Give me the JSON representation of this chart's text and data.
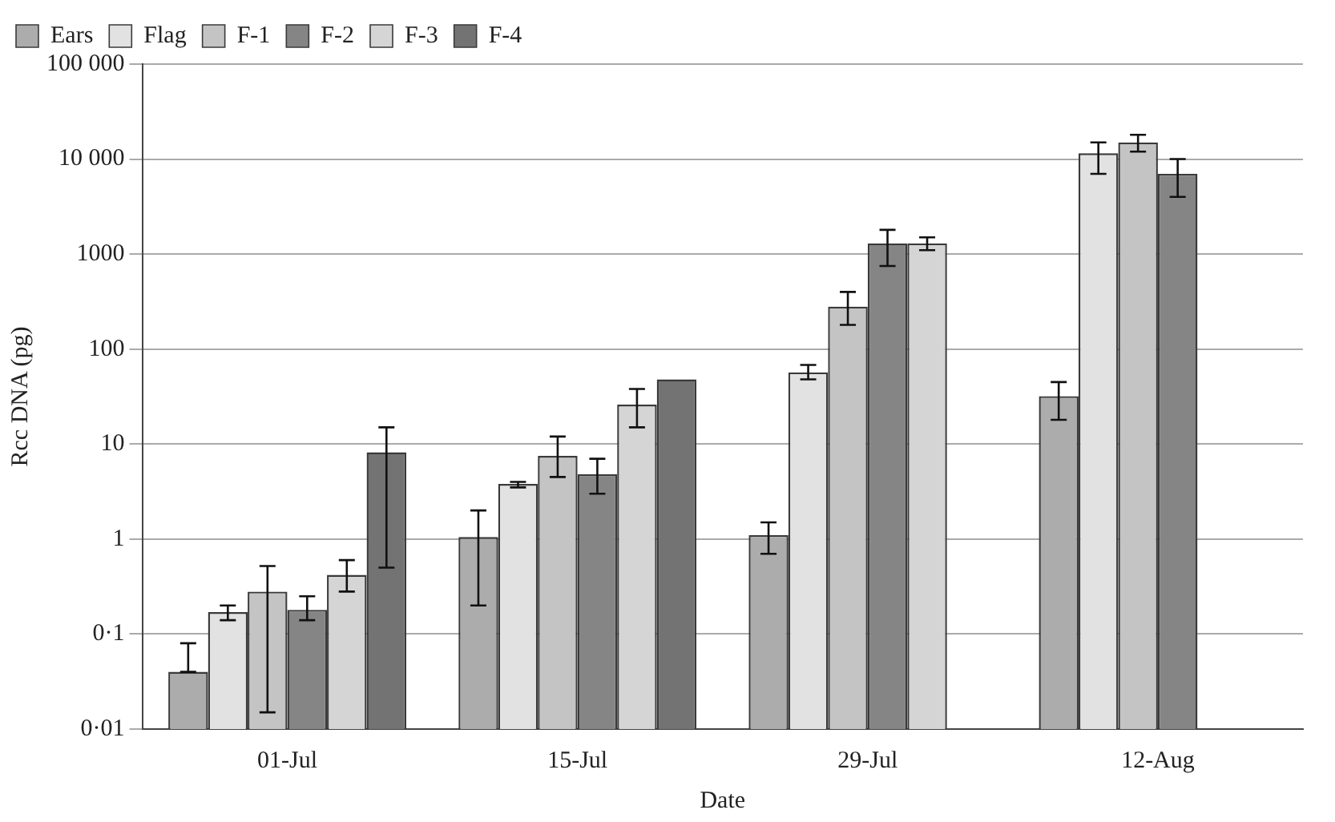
{
  "chart_data": {
    "type": "bar",
    "xlabel": "Date",
    "ylabel": "Rcc DNA (pg)",
    "categories": [
      "01-Jul",
      "15-Jul",
      "29-Jul",
      "12-Aug"
    ],
    "log": "y",
    "ylim": [
      0.01,
      100000
    ],
    "yticks": [
      {
        "value": 0.01,
        "label": "0·01"
      },
      {
        "value": 0.1,
        "label": "0·1"
      },
      1,
      10,
      100,
      1000,
      {
        "value": 10000,
        "label": "10 000"
      },
      {
        "value": 100000,
        "label": "100 000"
      }
    ],
    "grid": "y",
    "legend": "top left",
    "series": [
      {
        "name": "Ears",
        "color": "#acacac",
        "values": [
          0.04,
          1.05,
          1.1,
          32
        ],
        "errors": [
          [
            0.04,
            0.08
          ],
          [
            0.2,
            2
          ],
          [
            0.7,
            1.5
          ],
          [
            18,
            45
          ]
        ]
      },
      {
        "name": "Flag",
        "color": "#e2e2e2",
        "values": [
          0.17,
          3.8,
          57,
          11500
        ],
        "errors": [
          [
            0.14,
            0.2
          ],
          [
            3.5,
            4
          ],
          [
            48,
            68
          ],
          [
            7000,
            15000
          ]
        ]
      },
      {
        "name": "F-1",
        "color": "#c4c4c4",
        "values": [
          0.28,
          7.5,
          280,
          15000
        ],
        "errors": [
          [
            0.015,
            0.52
          ],
          [
            4.5,
            12
          ],
          [
            180,
            400
          ],
          [
            12000,
            18000
          ]
        ]
      },
      {
        "name": "F-2",
        "color": "#858585",
        "values": [
          0.18,
          4.8,
          1300,
          7000
        ],
        "errors": [
          [
            0.14,
            0.25
          ],
          [
            3,
            7
          ],
          [
            750,
            1800
          ],
          [
            4000,
            10000
          ]
        ]
      },
      {
        "name": "F-3",
        "color": "#d5d5d5",
        "values": [
          0.42,
          26,
          1300,
          null
        ],
        "errors": [
          [
            0.28,
            0.6
          ],
          [
            15,
            38
          ],
          [
            1100,
            1500
          ],
          null
        ]
      },
      {
        "name": "F-4",
        "color": "#737373",
        "values": [
          8.2,
          48,
          null,
          null
        ],
        "errors": [
          [
            0.5,
            15
          ],
          null,
          null,
          null
        ]
      }
    ]
  }
}
